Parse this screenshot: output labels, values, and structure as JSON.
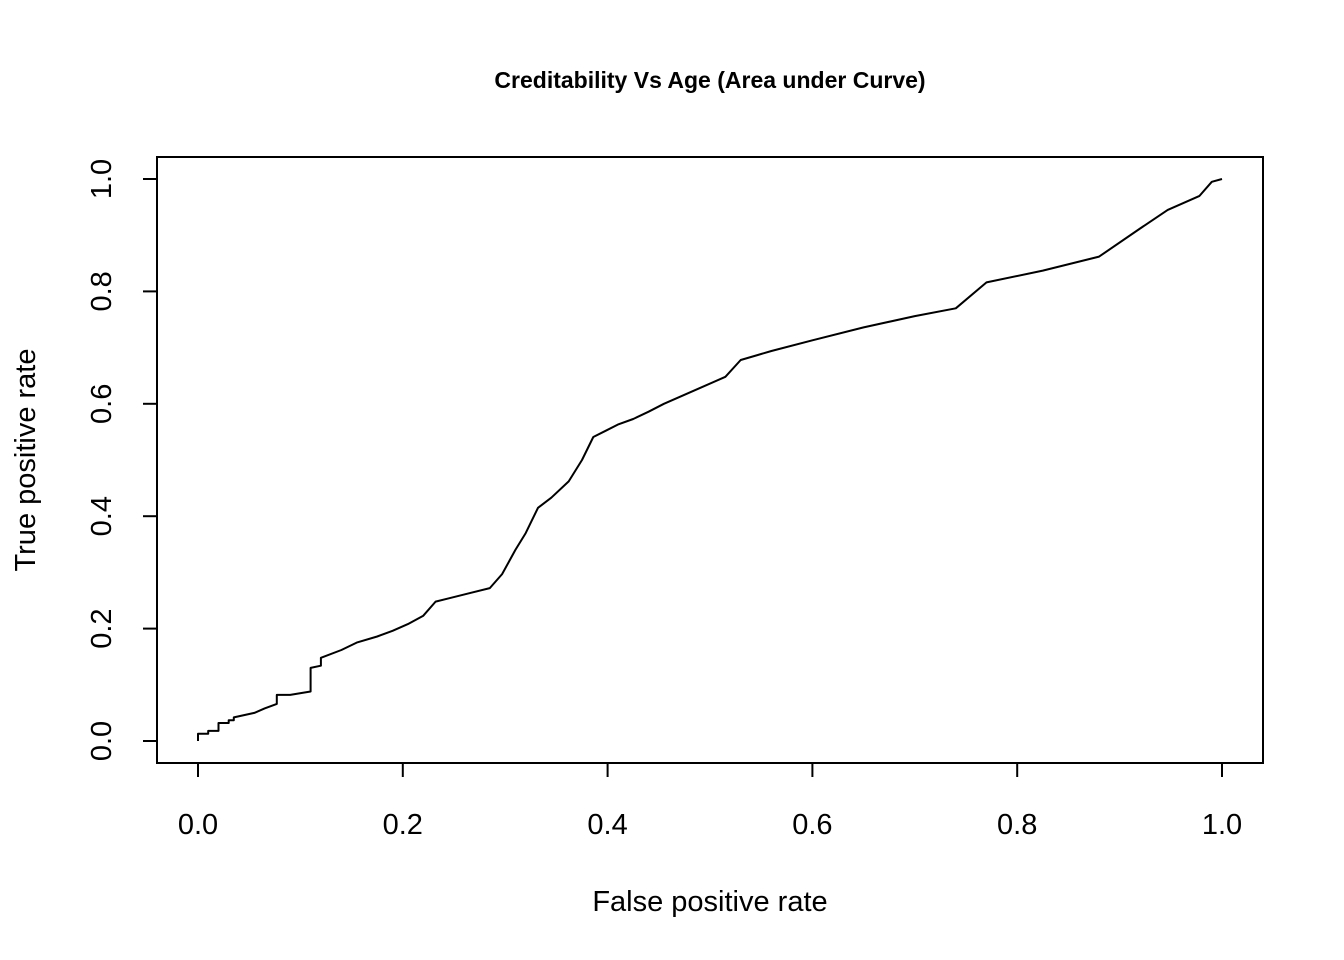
{
  "chart_data": {
    "type": "line",
    "title": "Creditability Vs Age (Area under Curve)",
    "xlabel": "False positive rate",
    "ylabel": "True positive rate",
    "xlim": [
      0.0,
      1.0
    ],
    "ylim": [
      0.0,
      1.0
    ],
    "x_ticks": [
      "0.0",
      "0.2",
      "0.4",
      "0.6",
      "0.8",
      "1.0"
    ],
    "y_ticks": [
      "0.0",
      "0.2",
      "0.4",
      "0.6",
      "0.8",
      "1.0"
    ],
    "grid": false,
    "legend": "none",
    "line_color": "#000000",
    "series": [
      {
        "x": [
          0,
          0,
          0.01,
          0.01,
          0.02,
          0.02,
          0.03,
          0.03,
          0.035,
          0.035,
          0.045,
          0.055,
          0.065,
          0.077,
          0.077,
          0.09,
          0.11,
          0.11,
          0.12,
          0.12,
          0.14,
          0.155,
          0.175,
          0.19,
          0.205,
          0.22,
          0.232,
          0.245,
          0.265,
          0.285,
          0.297,
          0.31,
          0.32,
          0.332,
          0.345,
          0.362,
          0.375,
          0.386,
          0.398,
          0.41,
          0.425,
          0.44,
          0.455,
          0.47,
          0.49,
          0.515,
          0.53,
          0.545,
          0.56,
          0.6,
          0.65,
          0.7,
          0.74,
          0.77,
          0.825,
          0.88,
          0.92,
          0.947,
          0.978,
          0.99,
          1.0
        ],
        "y": [
          0,
          0.013,
          0.013,
          0.018,
          0.018,
          0.032,
          0.032,
          0.037,
          0.037,
          0.042,
          0.046,
          0.05,
          0.058,
          0.066,
          0.082,
          0.082,
          0.088,
          0.13,
          0.134,
          0.148,
          0.162,
          0.175,
          0.186,
          0.196,
          0.208,
          0.223,
          0.248,
          0.254,
          0.263,
          0.272,
          0.297,
          0.34,
          0.37,
          0.415,
          0.433,
          0.462,
          0.5,
          0.541,
          0.552,
          0.563,
          0.573,
          0.586,
          0.6,
          0.612,
          0.628,
          0.648,
          0.678,
          0.686,
          0.694,
          0.713,
          0.736,
          0.756,
          0.77,
          0.816,
          0.837,
          0.862,
          0.912,
          0.945,
          0.97,
          0.995,
          1.0
        ]
      }
    ]
  }
}
